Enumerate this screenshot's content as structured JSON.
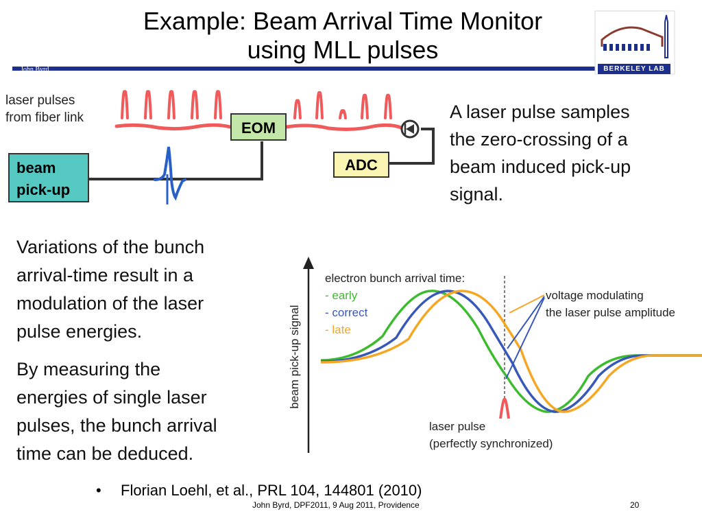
{
  "slide": {
    "title_line1": "Example: Beam Arrival Time Monitor",
    "title_line2": "using MLL pulses",
    "author_tag": "John Byrd",
    "logo_text": "BERKELEY LAB",
    "footer": "John Byrd, DPF2011, 9 Aug 2011, Providence",
    "page_number": "20",
    "reference": "Florian Loehl, et al., PRL 104, 144801 (2010)",
    "bullet": "•"
  },
  "diagram": {
    "laser_label_line1": "laser pulses",
    "laser_label_line2": "from fiber link",
    "beam_box_line1": "beam",
    "beam_box_line2": "pick-up",
    "eom_label": "EOM",
    "adc_label": "ADC",
    "description_lines": [
      "A laser pulse samples",
      "the zero-crossing of a",
      "beam induced pick-up",
      "signal."
    ]
  },
  "text": {
    "para1_lines": [
      "Variations of the bunch",
      "arrival-time result in a",
      "modulation of the laser",
      "pulse energies."
    ],
    "para2_lines": [
      "By measuring the",
      "energies of single laser",
      "pulses, the bunch arrival",
      "time can be deduced."
    ]
  },
  "plot": {
    "ylabel": "beam pick-up signal",
    "legend_title": "electron bunch arrival time:",
    "legend_items": [
      {
        "label": "- early",
        "color": "#3dbb2e"
      },
      {
        "label": "- correct",
        "color": "#3858b8"
      },
      {
        "label": "- late",
        "color": "#f5a623"
      }
    ],
    "voltage_annotation_line1": "voltage modulating",
    "voltage_annotation_line2": "the laser pulse amplitude",
    "laser_annotation_line1": "laser pulse",
    "laser_annotation_line2": "(perfectly synchronized)"
  },
  "colors": {
    "header_bar": "#1d2f8c",
    "laser_red": "#f05a5a",
    "beam_box": "#56c8c2",
    "eom_box": "#c2e7a8",
    "adc_box": "#fbf5b3",
    "pickup_blue": "#2860c8",
    "early_green": "#3dbb2e",
    "correct_blue": "#3858b8",
    "late_orange": "#f5a623"
  }
}
